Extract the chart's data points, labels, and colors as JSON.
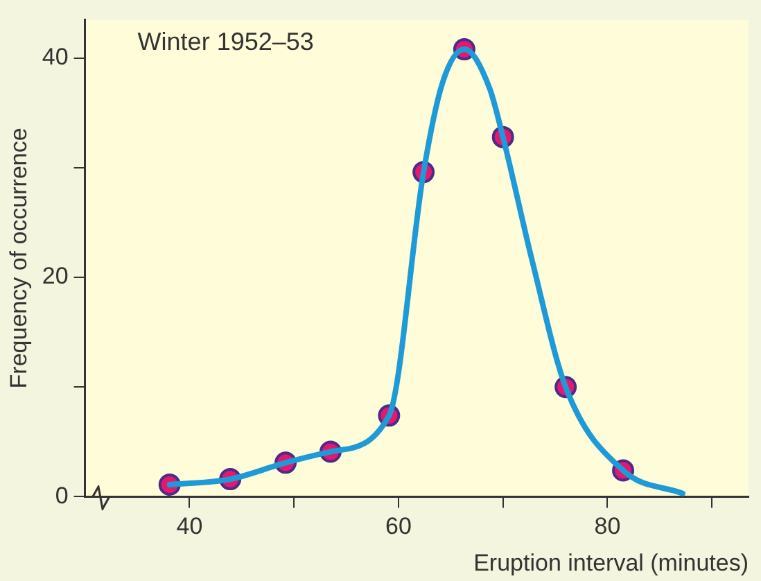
{
  "chart_data": {
    "type": "line",
    "xlabel": "Eruption interval (minutes)",
    "ylabel": "Frequency of occurrence",
    "annotations": [
      "Winter 1952–53"
    ],
    "xlim": [
      30,
      93.5
    ],
    "ylim": [
      0,
      43.5
    ],
    "xticks": [
      40,
      {
        "value": 50,
        "label": null
      },
      60,
      {
        "value": 70,
        "label": null
      },
      80,
      {
        "value": 90,
        "label": null
      }
    ],
    "yticks": [
      0,
      {
        "value": 10,
        "label": null
      },
      20,
      {
        "value": 30,
        "label": null
      },
      40
    ],
    "grid": false,
    "legend": false,
    "series": [
      {
        "color": "#1e9bd7",
        "line_style": "solid",
        "x": [
          38.1,
          43.9,
          49.2,
          53.5,
          59.1,
          62.4,
          64.2,
          66.3,
          68.7,
          70.0,
          72.8,
          76.0,
          81.5,
          87.2
        ],
        "values": [
          1.1,
          1.6,
          3.1,
          4.1,
          7.4,
          29.6,
          37.7,
          40.8,
          37.3,
          32.8,
          21.5,
          10.0,
          2.4,
          0.3
        ]
      },
      {
        "type": "scatter",
        "color": "#e5186f",
        "marker": "circle",
        "x": [
          38.1,
          43.9,
          49.2,
          53.5,
          59.1,
          62.4,
          66.3,
          70.0,
          76.0,
          81.5
        ],
        "values": [
          1.1,
          1.6,
          3.1,
          4.1,
          7.4,
          29.6,
          40.8,
          32.8,
          10.0,
          2.4
        ]
      }
    ]
  }
}
